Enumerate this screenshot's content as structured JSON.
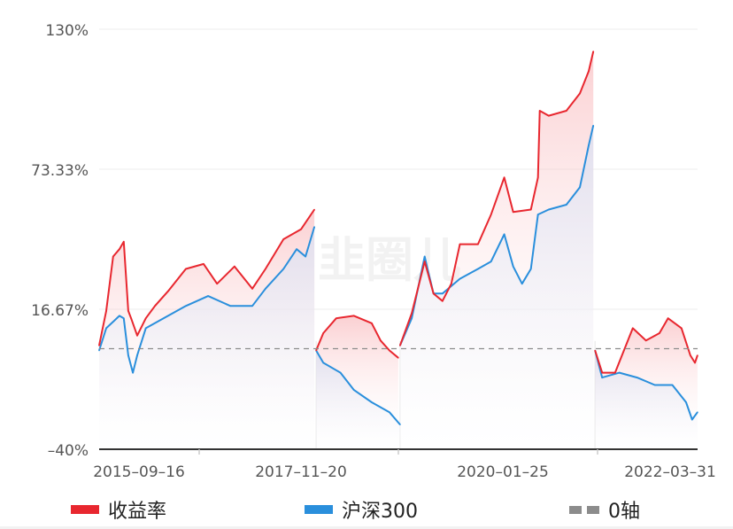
{
  "chart_data": {
    "type": "line",
    "title": "",
    "xlabel": "",
    "ylabel": "",
    "ylim": [
      -40,
      130
    ],
    "yticks": [
      "130%",
      "73.33%",
      "16.67%",
      "-40%"
    ],
    "ytick_values": [
      130,
      73.33,
      16.67,
      -40
    ],
    "xlim": [
      "2015-09-16",
      "2022-03-31"
    ],
    "xticks": [
      "2015-09-16",
      "2017-11-20",
      "2020-01-25",
      "2022-03-31"
    ],
    "grid": true,
    "legend_position": "bottom",
    "zero_line": {
      "name": "0轴",
      "value": 0,
      "color": "#8c8c8c",
      "style": "dashed"
    },
    "watermark": "韭圈儿",
    "series": [
      {
        "name": "收益率",
        "color": "#e8272f",
        "segments": [
          [
            [
              "2015-09-16",
              2
            ],
            [
              "2015-10-14",
              16
            ],
            [
              "2015-11-10",
              38
            ],
            [
              "2015-12-05",
              41
            ],
            [
              "2015-12-22",
              44
            ],
            [
              "2016-01-09",
              16
            ],
            [
              "2016-01-20",
              13
            ],
            [
              "2016-02-13",
              6
            ],
            [
              "2016-03-18",
              13
            ],
            [
              "2016-04-23",
              18
            ],
            [
              "2016-06-14",
              24
            ],
            [
              "2016-08-23",
              33
            ],
            [
              "2016-11-01",
              35
            ],
            [
              "2016-12-24",
              27
            ],
            [
              "2017-03-03",
              34
            ],
            [
              "2017-05-12",
              25
            ],
            [
              "2017-07-03",
              33
            ],
            [
              "2017-09-12",
              45
            ],
            [
              "2017-11-20",
              49
            ],
            [
              "2018-01-12",
              57
            ]
          ],
          [
            [
              "2018-01-19",
              0
            ],
            [
              "2018-02-16",
              7
            ],
            [
              "2018-04-08",
              13
            ],
            [
              "2018-06-17",
              14
            ],
            [
              "2018-08-26",
              11
            ],
            [
              "2018-09-30",
              4
            ],
            [
              "2018-11-04",
              0
            ],
            [
              "2018-12-09",
              -3
            ]
          ],
          [
            [
              "2018-12-16",
              2
            ],
            [
              "2019-01-31",
              15
            ],
            [
              "2019-03-23",
              36
            ],
            [
              "2019-04-27",
              23
            ],
            [
              "2019-06-01",
              20
            ],
            [
              "2019-07-06",
              27
            ],
            [
              "2019-08-09",
              43
            ],
            [
              "2019-10-19",
              43
            ],
            [
              "2019-12-10",
              55
            ],
            [
              "2020-01-31",
              70
            ],
            [
              "2020-03-06",
              56
            ],
            [
              "2020-05-15",
              57
            ],
            [
              "2020-06-12",
              70
            ],
            [
              "2020-06-19",
              97
            ],
            [
              "2020-07-24",
              95
            ],
            [
              "2020-10-02",
              97
            ],
            [
              "2020-11-24",
              104
            ],
            [
              "2020-12-29",
              113
            ],
            [
              "2021-01-16",
              121
            ]
          ],
          [
            [
              "2021-01-23",
              0
            ],
            [
              "2021-02-20",
              -9
            ],
            [
              "2021-04-12",
              -9
            ],
            [
              "2021-05-17",
              0
            ],
            [
              "2021-06-21",
              9
            ],
            [
              "2021-08-12",
              4
            ],
            [
              "2021-10-04",
              7
            ],
            [
              "2021-11-07",
              13
            ],
            [
              "2021-12-30",
              9
            ],
            [
              "2022-02-03",
              -2
            ],
            [
              "2022-02-21",
              -5
            ],
            [
              "2022-03-03",
              -2
            ]
          ]
        ]
      },
      {
        "name": "沪深300",
        "color": "#2a8fdc",
        "segments": [
          [
            [
              "2015-09-16",
              0
            ],
            [
              "2015-10-14",
              9
            ],
            [
              "2015-12-05",
              14
            ],
            [
              "2015-12-22",
              13
            ],
            [
              "2016-01-09",
              -2
            ],
            [
              "2016-01-27",
              -9
            ],
            [
              "2016-02-13",
              -2
            ],
            [
              "2016-03-18",
              9
            ],
            [
              "2016-05-27",
              13
            ],
            [
              "2016-08-23",
              18
            ],
            [
              "2016-11-19",
              22
            ],
            [
              "2017-02-15",
              18
            ],
            [
              "2017-05-12",
              18
            ],
            [
              "2017-07-03",
              25
            ],
            [
              "2017-09-12",
              33
            ],
            [
              "2017-11-03",
              41
            ],
            [
              "2017-12-08",
              38
            ],
            [
              "2018-01-12",
              50
            ]
          ],
          [
            [
              "2018-01-19",
              0
            ],
            [
              "2018-02-16",
              -5
            ],
            [
              "2018-04-25",
              -9
            ],
            [
              "2018-06-17",
              -16
            ],
            [
              "2018-08-26",
              -21
            ],
            [
              "2018-11-04",
              -25
            ],
            [
              "2018-12-16",
              -30
            ]
          ],
          [
            [
              "2018-12-16",
              2
            ],
            [
              "2019-01-31",
              13
            ],
            [
              "2019-03-23",
              38
            ],
            [
              "2019-04-27",
              23
            ],
            [
              "2019-06-01",
              23
            ],
            [
              "2019-08-09",
              29
            ],
            [
              "2019-10-19",
              33
            ],
            [
              "2019-12-10",
              36
            ],
            [
              "2020-01-31",
              47
            ],
            [
              "2020-03-06",
              34
            ],
            [
              "2020-04-10",
              27
            ],
            [
              "2020-05-15",
              33
            ],
            [
              "2020-06-12",
              55
            ],
            [
              "2020-07-24",
              57
            ],
            [
              "2020-10-02",
              59
            ],
            [
              "2020-11-24",
              66
            ],
            [
              "2020-12-29",
              83
            ],
            [
              "2021-01-16",
              91
            ]
          ],
          [
            [
              "2021-01-23",
              0
            ],
            [
              "2021-02-20",
              -11
            ],
            [
              "2021-04-29",
              -9
            ],
            [
              "2021-07-08",
              -11
            ],
            [
              "2021-09-16",
              -14
            ],
            [
              "2021-11-24",
              -14
            ],
            [
              "2022-01-17",
              -21
            ],
            [
              "2022-02-10",
              -28
            ],
            [
              "2022-03-03",
              -25
            ]
          ]
        ]
      }
    ]
  }
}
